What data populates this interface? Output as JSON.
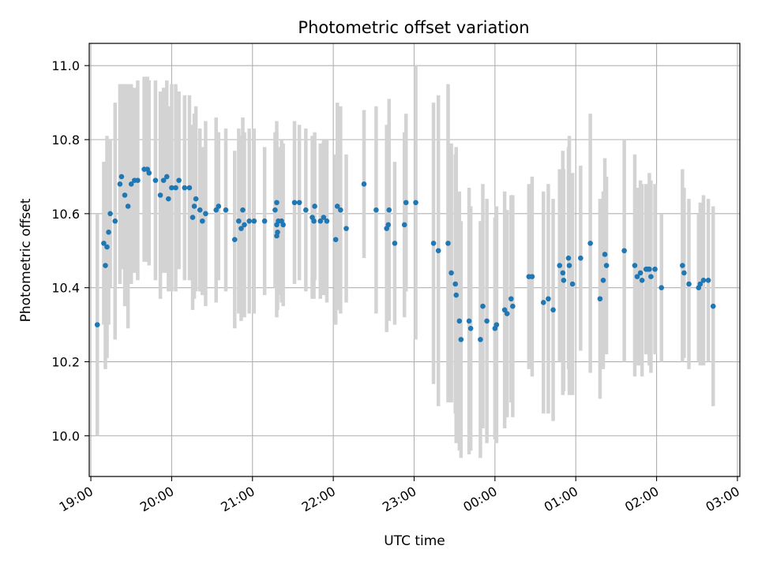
{
  "chart_data": {
    "type": "scatter",
    "title": "Photometric offset variation",
    "xlabel": "UTC time",
    "ylabel": "Photometric offset",
    "x_unit": "hours (continuous UTC, values above 24 are after midnight)",
    "xlim": [
      18.98,
      27.03
    ],
    "ylim": [
      9.89,
      11.06
    ],
    "x_ticks": [
      19,
      20,
      21,
      22,
      23,
      24,
      25,
      26,
      27
    ],
    "x_tick_labels": [
      "19:00",
      "20:00",
      "21:00",
      "22:00",
      "23:00",
      "00:00",
      "01:00",
      "02:00",
      "03:00"
    ],
    "y_ticks": [
      10.0,
      10.2,
      10.4,
      10.6,
      10.8,
      11.0
    ],
    "y_tick_labels": [
      "10.0",
      "10.2",
      "10.4",
      "10.6",
      "10.8",
      "11.0"
    ],
    "grid": true,
    "colors": {
      "points": "#1f77b4",
      "errorbars": "#d3d3d3",
      "grid": "#b0b0b0"
    },
    "points": [
      [
        19.08,
        10.3,
        0.3
      ],
      [
        19.16,
        10.52,
        0.22
      ],
      [
        19.18,
        10.46,
        0.28
      ],
      [
        19.2,
        10.51,
        0.3
      ],
      [
        19.22,
        10.55,
        0.25
      ],
      [
        19.24,
        10.6,
        0.2
      ],
      [
        19.3,
        10.58,
        0.32
      ],
      [
        19.36,
        10.68,
        0.27
      ],
      [
        19.38,
        10.7,
        0.25
      ],
      [
        19.42,
        10.65,
        0.3
      ],
      [
        19.46,
        10.62,
        0.33
      ],
      [
        19.5,
        10.68,
        0.27
      ],
      [
        19.54,
        10.69,
        0.25
      ],
      [
        19.58,
        10.69,
        0.27
      ],
      [
        19.66,
        10.72,
        0.25
      ],
      [
        19.7,
        10.72,
        0.25
      ],
      [
        19.72,
        10.71,
        0.25
      ],
      [
        19.8,
        10.69,
        0.27
      ],
      [
        19.86,
        10.65,
        0.28
      ],
      [
        19.9,
        10.69,
        0.25
      ],
      [
        19.94,
        10.7,
        0.26
      ],
      [
        19.96,
        10.64,
        0.25
      ],
      [
        20.0,
        10.67,
        0.28
      ],
      [
        20.05,
        10.67,
        0.28
      ],
      [
        20.09,
        10.69,
        0.24
      ],
      [
        20.16,
        10.67,
        0.25
      ],
      [
        20.22,
        10.67,
        0.25
      ],
      [
        20.26,
        10.59,
        0.25
      ],
      [
        20.28,
        10.62,
        0.25
      ],
      [
        20.3,
        10.64,
        0.25
      ],
      [
        20.35,
        10.61,
        0.22
      ],
      [
        20.38,
        10.58,
        0.2
      ],
      [
        20.42,
        10.6,
        0.25
      ],
      [
        20.55,
        10.61,
        0.25
      ],
      [
        20.58,
        10.62,
        0.2
      ],
      [
        20.67,
        10.61,
        0.22
      ],
      [
        20.78,
        10.53,
        0.24
      ],
      [
        20.83,
        10.58,
        0.25
      ],
      [
        20.86,
        10.56,
        0.25
      ],
      [
        20.9,
        10.57,
        0.25
      ],
      [
        20.88,
        10.61,
        0.25
      ],
      [
        20.96,
        10.58,
        0.25
      ],
      [
        21.02,
        10.58,
        0.25
      ],
      [
        21.15,
        10.58,
        0.2
      ],
      [
        21.28,
        10.61,
        0.21
      ],
      [
        21.3,
        10.63,
        0.22
      ],
      [
        21.3,
        10.57,
        0.25
      ],
      [
        21.3,
        10.54,
        0.2
      ],
      [
        21.31,
        10.55,
        0.21
      ],
      [
        21.32,
        10.58,
        0.2
      ],
      [
        21.36,
        10.58,
        0.22
      ],
      [
        21.38,
        10.57,
        0.22
      ],
      [
        21.52,
        10.63,
        0.22
      ],
      [
        21.58,
        10.63,
        0.21
      ],
      [
        21.66,
        10.61,
        0.22
      ],
      [
        21.74,
        10.59,
        0.22
      ],
      [
        21.76,
        10.58,
        0.21
      ],
      [
        21.77,
        10.62,
        0.2
      ],
      [
        21.84,
        10.58,
        0.21
      ],
      [
        21.88,
        10.59,
        0.21
      ],
      [
        21.92,
        10.58,
        0.22
      ],
      [
        22.03,
        10.53,
        0.23
      ],
      [
        22.05,
        10.62,
        0.28
      ],
      [
        22.09,
        10.61,
        0.28
      ],
      [
        22.16,
        10.56,
        0.2
      ],
      [
        22.38,
        10.68,
        0.2
      ],
      [
        22.53,
        10.61,
        0.28
      ],
      [
        22.66,
        10.56,
        0.28
      ],
      [
        22.68,
        10.57,
        0.24
      ],
      [
        22.69,
        10.61,
        0.3
      ],
      [
        22.76,
        10.52,
        0.22
      ],
      [
        22.88,
        10.57,
        0.25
      ],
      [
        22.9,
        10.63,
        0.24
      ],
      [
        23.02,
        10.63,
        0.37
      ],
      [
        23.24,
        10.52,
        0.38
      ],
      [
        23.3,
        10.5,
        0.42
      ],
      [
        23.42,
        10.52,
        0.43
      ],
      [
        23.46,
        10.44,
        0.35
      ],
      [
        23.51,
        10.41,
        0.35
      ],
      [
        23.52,
        10.38,
        0.4
      ],
      [
        23.56,
        10.31,
        0.35
      ],
      [
        23.58,
        10.26,
        0.32
      ],
      [
        23.68,
        10.31,
        0.36
      ],
      [
        23.7,
        10.29,
        0.33
      ],
      [
        23.82,
        10.26,
        0.32
      ],
      [
        23.85,
        10.35,
        0.33
      ],
      [
        23.9,
        10.31,
        0.33
      ],
      [
        24.0,
        10.29,
        0.3
      ],
      [
        24.02,
        10.3,
        0.32
      ],
      [
        24.12,
        10.34,
        0.32
      ],
      [
        24.15,
        10.33,
        0.28
      ],
      [
        24.2,
        10.37,
        0.28
      ],
      [
        24.22,
        10.35,
        0.3
      ],
      [
        24.42,
        10.43,
        0.25
      ],
      [
        24.46,
        10.43,
        0.27
      ],
      [
        24.6,
        10.36,
        0.3
      ],
      [
        24.66,
        10.37,
        0.31
      ],
      [
        24.72,
        10.34,
        0.3
      ],
      [
        24.8,
        10.46,
        0.26
      ],
      [
        24.84,
        10.44,
        0.33
      ],
      [
        24.85,
        10.42,
        0.3
      ],
      [
        24.92,
        10.46,
        0.35
      ],
      [
        24.91,
        10.48,
        0.3
      ],
      [
        24.96,
        10.41,
        0.3
      ],
      [
        25.06,
        10.48,
        0.25
      ],
      [
        25.18,
        10.52,
        0.35
      ],
      [
        25.3,
        10.37,
        0.27
      ],
      [
        25.34,
        10.42,
        0.24
      ],
      [
        25.36,
        10.49,
        0.26
      ],
      [
        25.38,
        10.46,
        0.24
      ],
      [
        25.6,
        10.5,
        0.3
      ],
      [
        25.73,
        10.46,
        0.3
      ],
      [
        25.76,
        10.43,
        0.24
      ],
      [
        25.8,
        10.44,
        0.25
      ],
      [
        25.82,
        10.42,
        0.26
      ],
      [
        25.87,
        10.45,
        0.23
      ],
      [
        25.89,
        10.45,
        0.22
      ],
      [
        25.91,
        10.45,
        0.26
      ],
      [
        25.93,
        10.43,
        0.26
      ],
      [
        25.98,
        10.45,
        0.23
      ],
      [
        26.06,
        10.4,
        0.2
      ],
      [
        26.32,
        10.46,
        0.26
      ],
      [
        26.34,
        10.44,
        0.23
      ],
      [
        26.4,
        10.41,
        0.23
      ],
      [
        26.52,
        10.4,
        0.2
      ],
      [
        26.54,
        10.41,
        0.22
      ],
      [
        26.58,
        10.42,
        0.23
      ],
      [
        26.64,
        10.42,
        0.22
      ],
      [
        26.7,
        10.35,
        0.27
      ]
    ]
  }
}
